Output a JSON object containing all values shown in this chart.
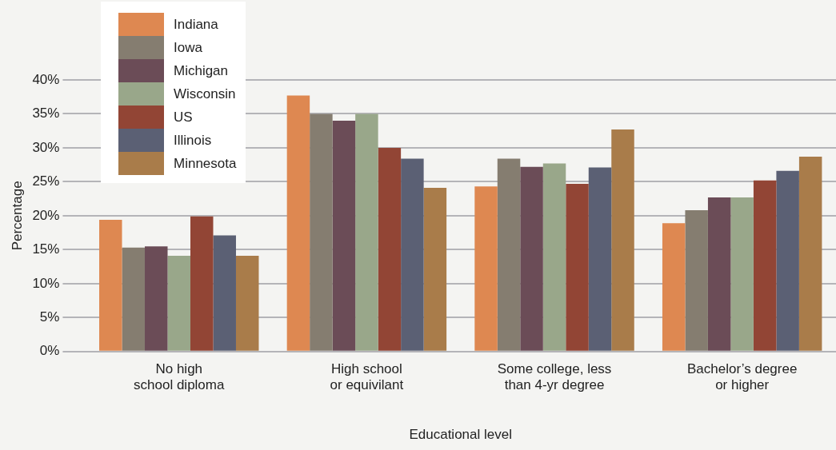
{
  "chart_data": {
    "type": "bar",
    "xlabel": "Educational level",
    "ylabel": "Percentage",
    "categories": [
      "No high\nschool diploma",
      "High school\nor equivilant",
      "Some college, less\nthan 4-yr degree",
      "Bachelor’s degree\nor higher"
    ],
    "series": [
      {
        "name": "Indiana",
        "color": "#de8851",
        "values": [
          19.4,
          37.7,
          24.3,
          18.9
        ]
      },
      {
        "name": "Iowa",
        "color": "#857d70",
        "values": [
          15.3,
          35.0,
          28.4,
          20.8
        ]
      },
      {
        "name": "Michigan",
        "color": "#6b4c57",
        "values": [
          15.5,
          34.0,
          27.2,
          22.7
        ]
      },
      {
        "name": "Wisconsin",
        "color": "#99a78a",
        "values": [
          14.1,
          35.0,
          27.7,
          22.7
        ]
      },
      {
        "name": "US",
        "color": "#924535",
        "values": [
          19.9,
          30.0,
          24.7,
          25.2
        ]
      },
      {
        "name": "Illinois",
        "color": "#5b6074",
        "values": [
          17.1,
          28.4,
          27.1,
          26.6
        ]
      },
      {
        "name": "Minnesota",
        "color": "#a97c4a",
        "values": [
          14.1,
          24.1,
          32.7,
          28.7
        ]
      }
    ],
    "ylim": [
      0,
      40
    ],
    "yticks": [
      {
        "value": 0,
        "label": "0%"
      },
      {
        "value": 5,
        "label": "5%"
      },
      {
        "value": 10,
        "label": "10%"
      },
      {
        "value": 15,
        "label": "15%"
      },
      {
        "value": 20,
        "label": "20%"
      },
      {
        "value": 25,
        "label": "25%"
      },
      {
        "value": 30,
        "label": "30%"
      },
      {
        "value": 35,
        "label": "35%"
      },
      {
        "value": 40,
        "label": "40%"
      }
    ],
    "grid": "y",
    "legend": "top left"
  }
}
